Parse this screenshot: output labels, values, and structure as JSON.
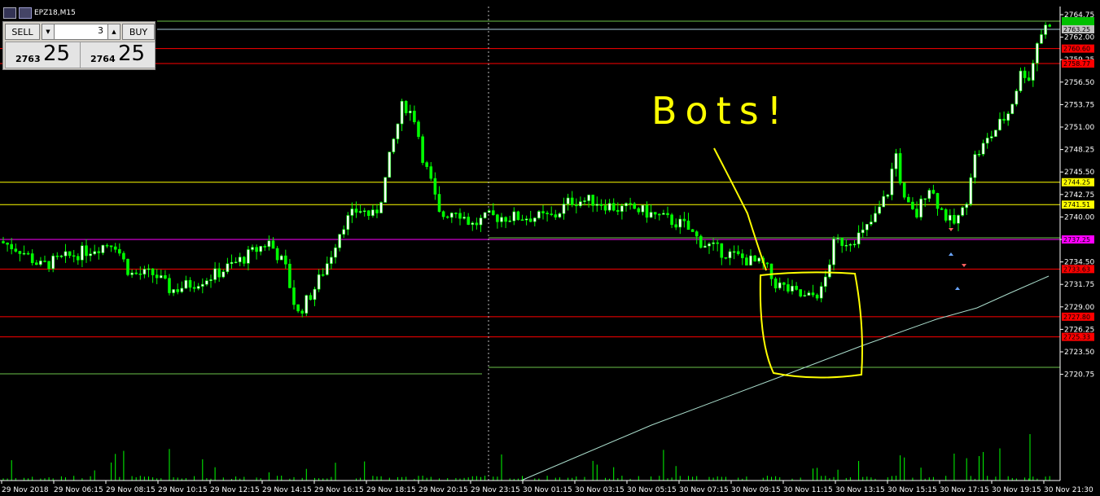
{
  "window": {
    "symbol_label": "EPZ18,M15"
  },
  "trade_panel": {
    "sell_label": "SELL",
    "buy_label": "BUY",
    "lot_value": "3",
    "bid_small": "2763",
    "bid_big": "25",
    "ask_small": "2764",
    "ask_big": "25"
  },
  "colors": {
    "bull": "#ffffff",
    "bear": "#00ff00",
    "line_green": "#6cc24a",
    "line_yellow": "#ffff00",
    "line_red": "#ff0000",
    "line_magenta": "#ff00ff",
    "line_cyan": "#aaddcc",
    "annotation": "#ffff00"
  },
  "chart_data": {
    "type": "candlestick",
    "y_ticks": [
      "2764.75",
      "2762.00",
      "2759.25",
      "2756.50",
      "2753.75",
      "2751.00",
      "2748.25",
      "2745.50",
      "2742.75",
      "2740.00",
      "2737.25",
      "2734.50",
      "2731.75",
      "2729.00",
      "2726.25",
      "2723.50",
      "2720.75"
    ],
    "x_ticks": [
      "29 Nov 2018",
      "29 Nov 06:15",
      "29 Nov 08:15",
      "29 Nov 10:15",
      "29 Nov 12:15",
      "29 Nov 14:15",
      "29 Nov 16:15",
      "29 Nov 18:15",
      "29 Nov 20:15",
      "29 Nov 23:15",
      "30 Nov 01:15",
      "30 Nov 03:15",
      "30 Nov 05:15",
      "30 Nov 07:15",
      "30 Nov 09:15",
      "30 Nov 11:15",
      "30 Nov 13:15",
      "30 Nov 15:15",
      "30 Nov 17:15",
      "30 Nov 19:15",
      "30 Nov 21:30"
    ],
    "price_markers": [
      {
        "label": "2763.25",
        "value": 2763.25,
        "color": "#c0c0c0"
      },
      {
        "label": "2760.60",
        "value": 2760.6,
        "color": "#ff0000"
      },
      {
        "label": "2758.77",
        "value": 2758.77,
        "color": "#ff0000"
      },
      {
        "label": "2744.25",
        "value": 2744.25,
        "color": "#ffff00"
      },
      {
        "label": "2741.51",
        "value": 2741.51,
        "color": "#ffff00"
      },
      {
        "label": "2737.25",
        "value": 2737.25,
        "color": "#ff00ff"
      },
      {
        "label": "2733.63",
        "value": 2733.63,
        "color": "#ff0000"
      },
      {
        "label": "2727.80",
        "value": 2727.8,
        "color": "#ff0000"
      },
      {
        "label": "2725.33",
        "value": 2725.33,
        "color": "#ff0000"
      }
    ],
    "annotation_text": "Bots!"
  }
}
